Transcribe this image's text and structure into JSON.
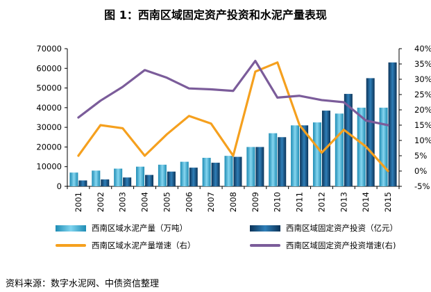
{
  "title": "图 1：西南区域固定资产投资和水泥产量表现",
  "source": "资料来源：数字水泥网、中债资信整理",
  "colors": {
    "cement_bar": "#40b4dc",
    "fai_bar": "#144e7e",
    "cement_growth": "#f5a01e",
    "fai_growth": "#7b5c9a"
  },
  "chart_data": {
    "type": "bar",
    "categories": [
      "2001",
      "2002",
      "2003",
      "2004",
      "2005",
      "2006",
      "2007",
      "2008",
      "2009",
      "2010",
      "2011",
      "2012",
      "2013",
      "2014",
      "2015"
    ],
    "ylim_left": [
      0,
      70000
    ],
    "yticks_left": [
      "0",
      "10000",
      "20000",
      "30000",
      "40000",
      "50000",
      "60000",
      "70000"
    ],
    "ylim_right": [
      -5,
      40
    ],
    "yticks_right": [
      "-5%",
      "0%",
      "5%",
      "10%",
      "15%",
      "20%",
      "25%",
      "30%",
      "35%",
      "40%"
    ],
    "grid": false,
    "legend_position": "bottom",
    "series": [
      {
        "name": "西南区域水泥产量（万吨）",
        "type": "bar",
        "axis": "left",
        "values": [
          7000,
          8000,
          9000,
          10000,
          11000,
          12500,
          14500,
          15500,
          20000,
          27000,
          31000,
          32500,
          37000,
          40000,
          40000
        ]
      },
      {
        "name": "西南区域固定资产投资（亿元）",
        "type": "bar",
        "axis": "left",
        "values": [
          3000,
          3500,
          4500,
          5800,
          7500,
          9500,
          12000,
          15000,
          20000,
          25000,
          31000,
          38500,
          47000,
          55000,
          63000
        ]
      },
      {
        "name": "西南区域水泥产量增速（右）",
        "type": "line",
        "axis": "right",
        "values": [
          5,
          15,
          14,
          5,
          12,
          18,
          15.5,
          5,
          32.5,
          35.5,
          15,
          6,
          13.5,
          8,
          0
        ]
      },
      {
        "name": "西南区域固定资产投资增速(右)",
        "type": "line",
        "axis": "right",
        "values": [
          17.5,
          23,
          27.5,
          33,
          30.5,
          27,
          26.7,
          26.2,
          36,
          24,
          24.6,
          23.2,
          22.5,
          16.5,
          15
        ]
      }
    ]
  }
}
